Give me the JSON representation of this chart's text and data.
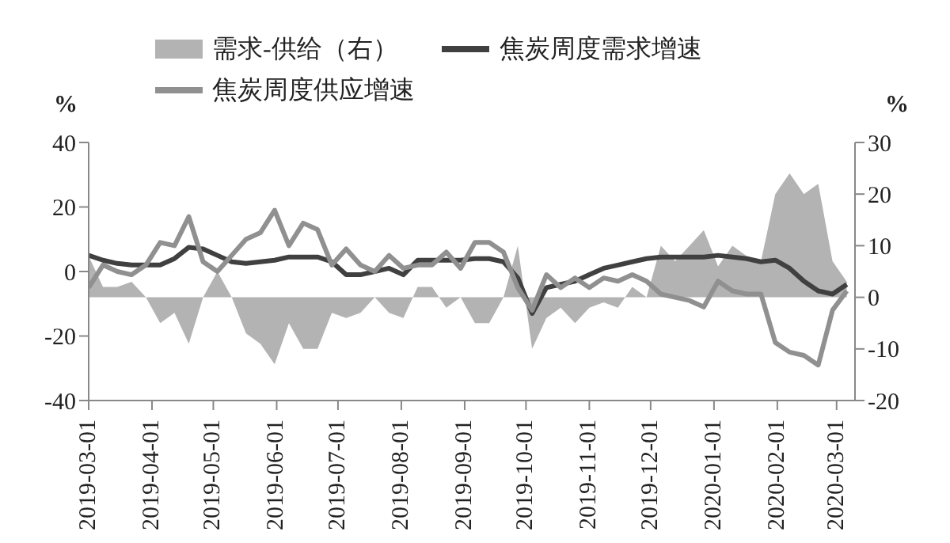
{
  "chart_data": {
    "type": "line",
    "ylabel": "%",
    "y2label": "%",
    "legend": "top",
    "x": [
      "2019-03-01",
      "2019-03-08",
      "2019-03-15",
      "2019-03-22",
      "2019-03-29",
      "2019-04-05",
      "2019-04-12",
      "2019-04-19",
      "2019-04-26",
      "2019-05-03",
      "2019-05-10",
      "2019-05-17",
      "2019-05-24",
      "2019-05-31",
      "2019-06-07",
      "2019-06-14",
      "2019-06-21",
      "2019-06-28",
      "2019-07-05",
      "2019-07-12",
      "2019-07-19",
      "2019-07-26",
      "2019-08-02",
      "2019-08-09",
      "2019-08-16",
      "2019-08-23",
      "2019-08-30",
      "2019-09-06",
      "2019-09-13",
      "2019-09-20",
      "2019-09-27",
      "2019-10-04",
      "2019-10-11",
      "2019-10-18",
      "2019-10-25",
      "2019-11-01",
      "2019-11-08",
      "2019-11-15",
      "2019-11-22",
      "2019-11-29",
      "2019-12-06",
      "2019-12-13",
      "2019-12-20",
      "2019-12-27",
      "2020-01-03",
      "2020-01-10",
      "2020-01-17",
      "2020-01-24",
      "2020-01-31",
      "2020-02-07",
      "2020-02-14",
      "2020-02-21",
      "2020-02-28",
      "2020-03-06"
    ],
    "series": [
      {
        "name": "需求-供给（右）",
        "type": "area",
        "axis": "y2",
        "color": "#b3b3b3",
        "values": [
          8,
          2,
          2,
          3,
          0,
          -5,
          -3,
          -9,
          0,
          5,
          0,
          -7,
          -9,
          -13,
          -5,
          -10,
          -10,
          -3,
          -4,
          -3,
          0,
          -3,
          -4,
          2,
          2,
          -2,
          0,
          -5,
          -5,
          0,
          10,
          -10,
          -4,
          -2,
          -5,
          -2,
          -1,
          -2,
          2,
          0,
          10,
          7,
          10,
          13,
          6,
          10,
          8,
          7,
          20,
          24,
          20,
          22,
          7,
          3
        ]
      },
      {
        "name": "焦炭周度需求增速",
        "color": "#404040",
        "values": [
          5,
          3.5,
          2.5,
          2,
          2,
          2,
          4,
          7.5,
          7,
          5,
          3,
          2.5,
          3,
          3.5,
          4.5,
          4.5,
          4.5,
          3,
          -1,
          -1,
          0,
          1,
          -1,
          3.5,
          3.5,
          3.5,
          3.5,
          4,
          4,
          3,
          -2,
          -13,
          -5,
          -4,
          -3,
          -1,
          1,
          2,
          3,
          4,
          4.5,
          4.5,
          4.5,
          4.5,
          5,
          4.5,
          4,
          3,
          3.5,
          1,
          -3,
          -6,
          -7,
          -4
        ]
      },
      {
        "name": "焦炭周度供应增速",
        "color": "#909090",
        "values": [
          -5,
          2,
          0,
          -1,
          2,
          9,
          8,
          17,
          3,
          0,
          5,
          10,
          12,
          19,
          8,
          15,
          13,
          2,
          7,
          2,
          0,
          5,
          1,
          2,
          2,
          6,
          1,
          9,
          9,
          6,
          -5,
          -12,
          -1,
          -5,
          -2,
          -5,
          -2,
          -3,
          -1,
          -3,
          -7,
          -8,
          -9,
          -11,
          -3,
          -6,
          -7,
          -7,
          -22,
          -25,
          -26,
          -29,
          -12,
          -6
        ]
      }
    ],
    "xlim": [
      "2019-03-01",
      "2020-03-10"
    ],
    "xticks": [
      "2019-03-01",
      "2019-04-01",
      "2019-05-01",
      "2019-06-01",
      "2019-07-01",
      "2019-08-01",
      "2019-09-01",
      "2019-10-01",
      "2019-11-01",
      "2019-12-01",
      "2020-01-01",
      "2020-02-01",
      "2020-03-01"
    ],
    "ylim": [
      -40,
      40
    ],
    "yticks": [
      -40,
      -20,
      0,
      20,
      40
    ],
    "y2lim": [
      -20,
      30
    ],
    "y2ticks": [
      -20,
      -10,
      0,
      10,
      20,
      30
    ],
    "grid": false,
    "marker": "none",
    "line_style": "solid"
  }
}
